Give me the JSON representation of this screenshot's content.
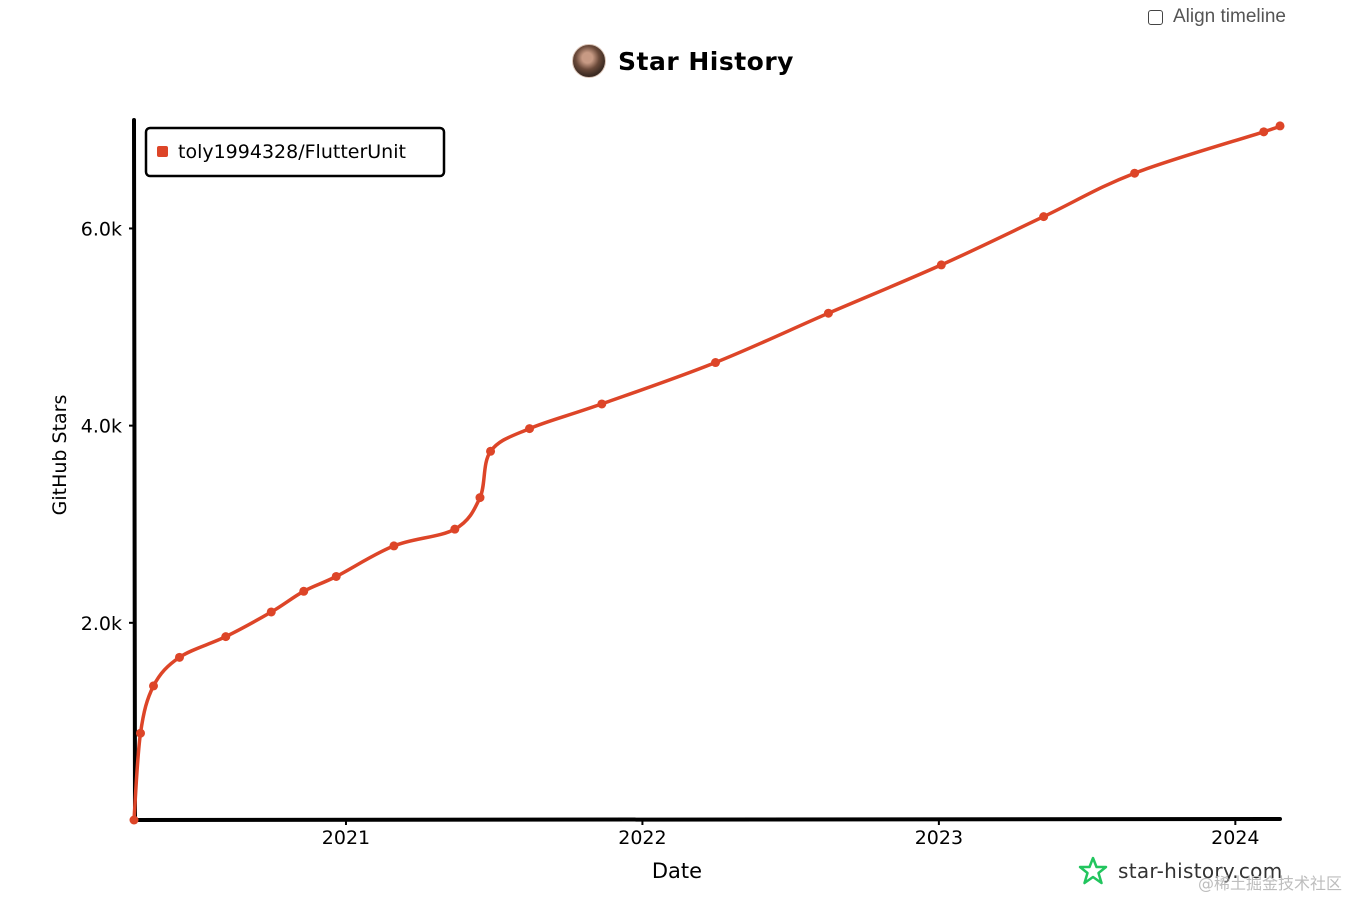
{
  "controls": {
    "align_timeline_label": "Align timeline",
    "align_timeline_checked": false
  },
  "header": {
    "title": "Star History",
    "avatar_icon": "repo-owner-avatar"
  },
  "footer": {
    "brand": "star-history.com",
    "brand_icon": "star-outline-icon",
    "brand_color": "#22c55e",
    "watermark": "@稀土掘金技术社区"
  },
  "chart_data": {
    "type": "line",
    "title": "Star History",
    "xlabel": "Date",
    "ylabel": "GitHub Stars",
    "x_ticks": [
      "2021",
      "2022",
      "2023",
      "2024"
    ],
    "y_ticks": [
      "2.0k",
      "4.0k",
      "6.0k"
    ],
    "legend": "top-left",
    "grid": false,
    "ylim": [
      0,
      7100
    ],
    "xlim": [
      "2020-04-15",
      "2024-02-25"
    ],
    "series": [
      {
        "name": "toly1994328/FlutterUnit",
        "color": "#dd4528",
        "points": [
          {
            "x": "2020-04-15",
            "y": 0
          },
          {
            "x": "2020-04-23",
            "y": 880
          },
          {
            "x": "2020-05-09",
            "y": 1360
          },
          {
            "x": "2020-06-10",
            "y": 1650
          },
          {
            "x": "2020-08-06",
            "y": 1860
          },
          {
            "x": "2020-10-01",
            "y": 2110
          },
          {
            "x": "2020-11-10",
            "y": 2320
          },
          {
            "x": "2020-12-20",
            "y": 2470
          },
          {
            "x": "2021-03-01",
            "y": 2780
          },
          {
            "x": "2021-05-15",
            "y": 2950
          },
          {
            "x": "2021-06-15",
            "y": 3270
          },
          {
            "x": "2021-06-28",
            "y": 3740
          },
          {
            "x": "2021-08-15",
            "y": 3970
          },
          {
            "x": "2021-11-12",
            "y": 4220
          },
          {
            "x": "2022-04-01",
            "y": 4640
          },
          {
            "x": "2022-08-18",
            "y": 5140
          },
          {
            "x": "2023-01-04",
            "y": 5630
          },
          {
            "x": "2023-05-10",
            "y": 6120
          },
          {
            "x": "2023-08-30",
            "y": 6560
          },
          {
            "x": "2024-02-05",
            "y": 6980
          },
          {
            "x": "2024-02-25",
            "y": 7040
          }
        ]
      }
    ]
  }
}
